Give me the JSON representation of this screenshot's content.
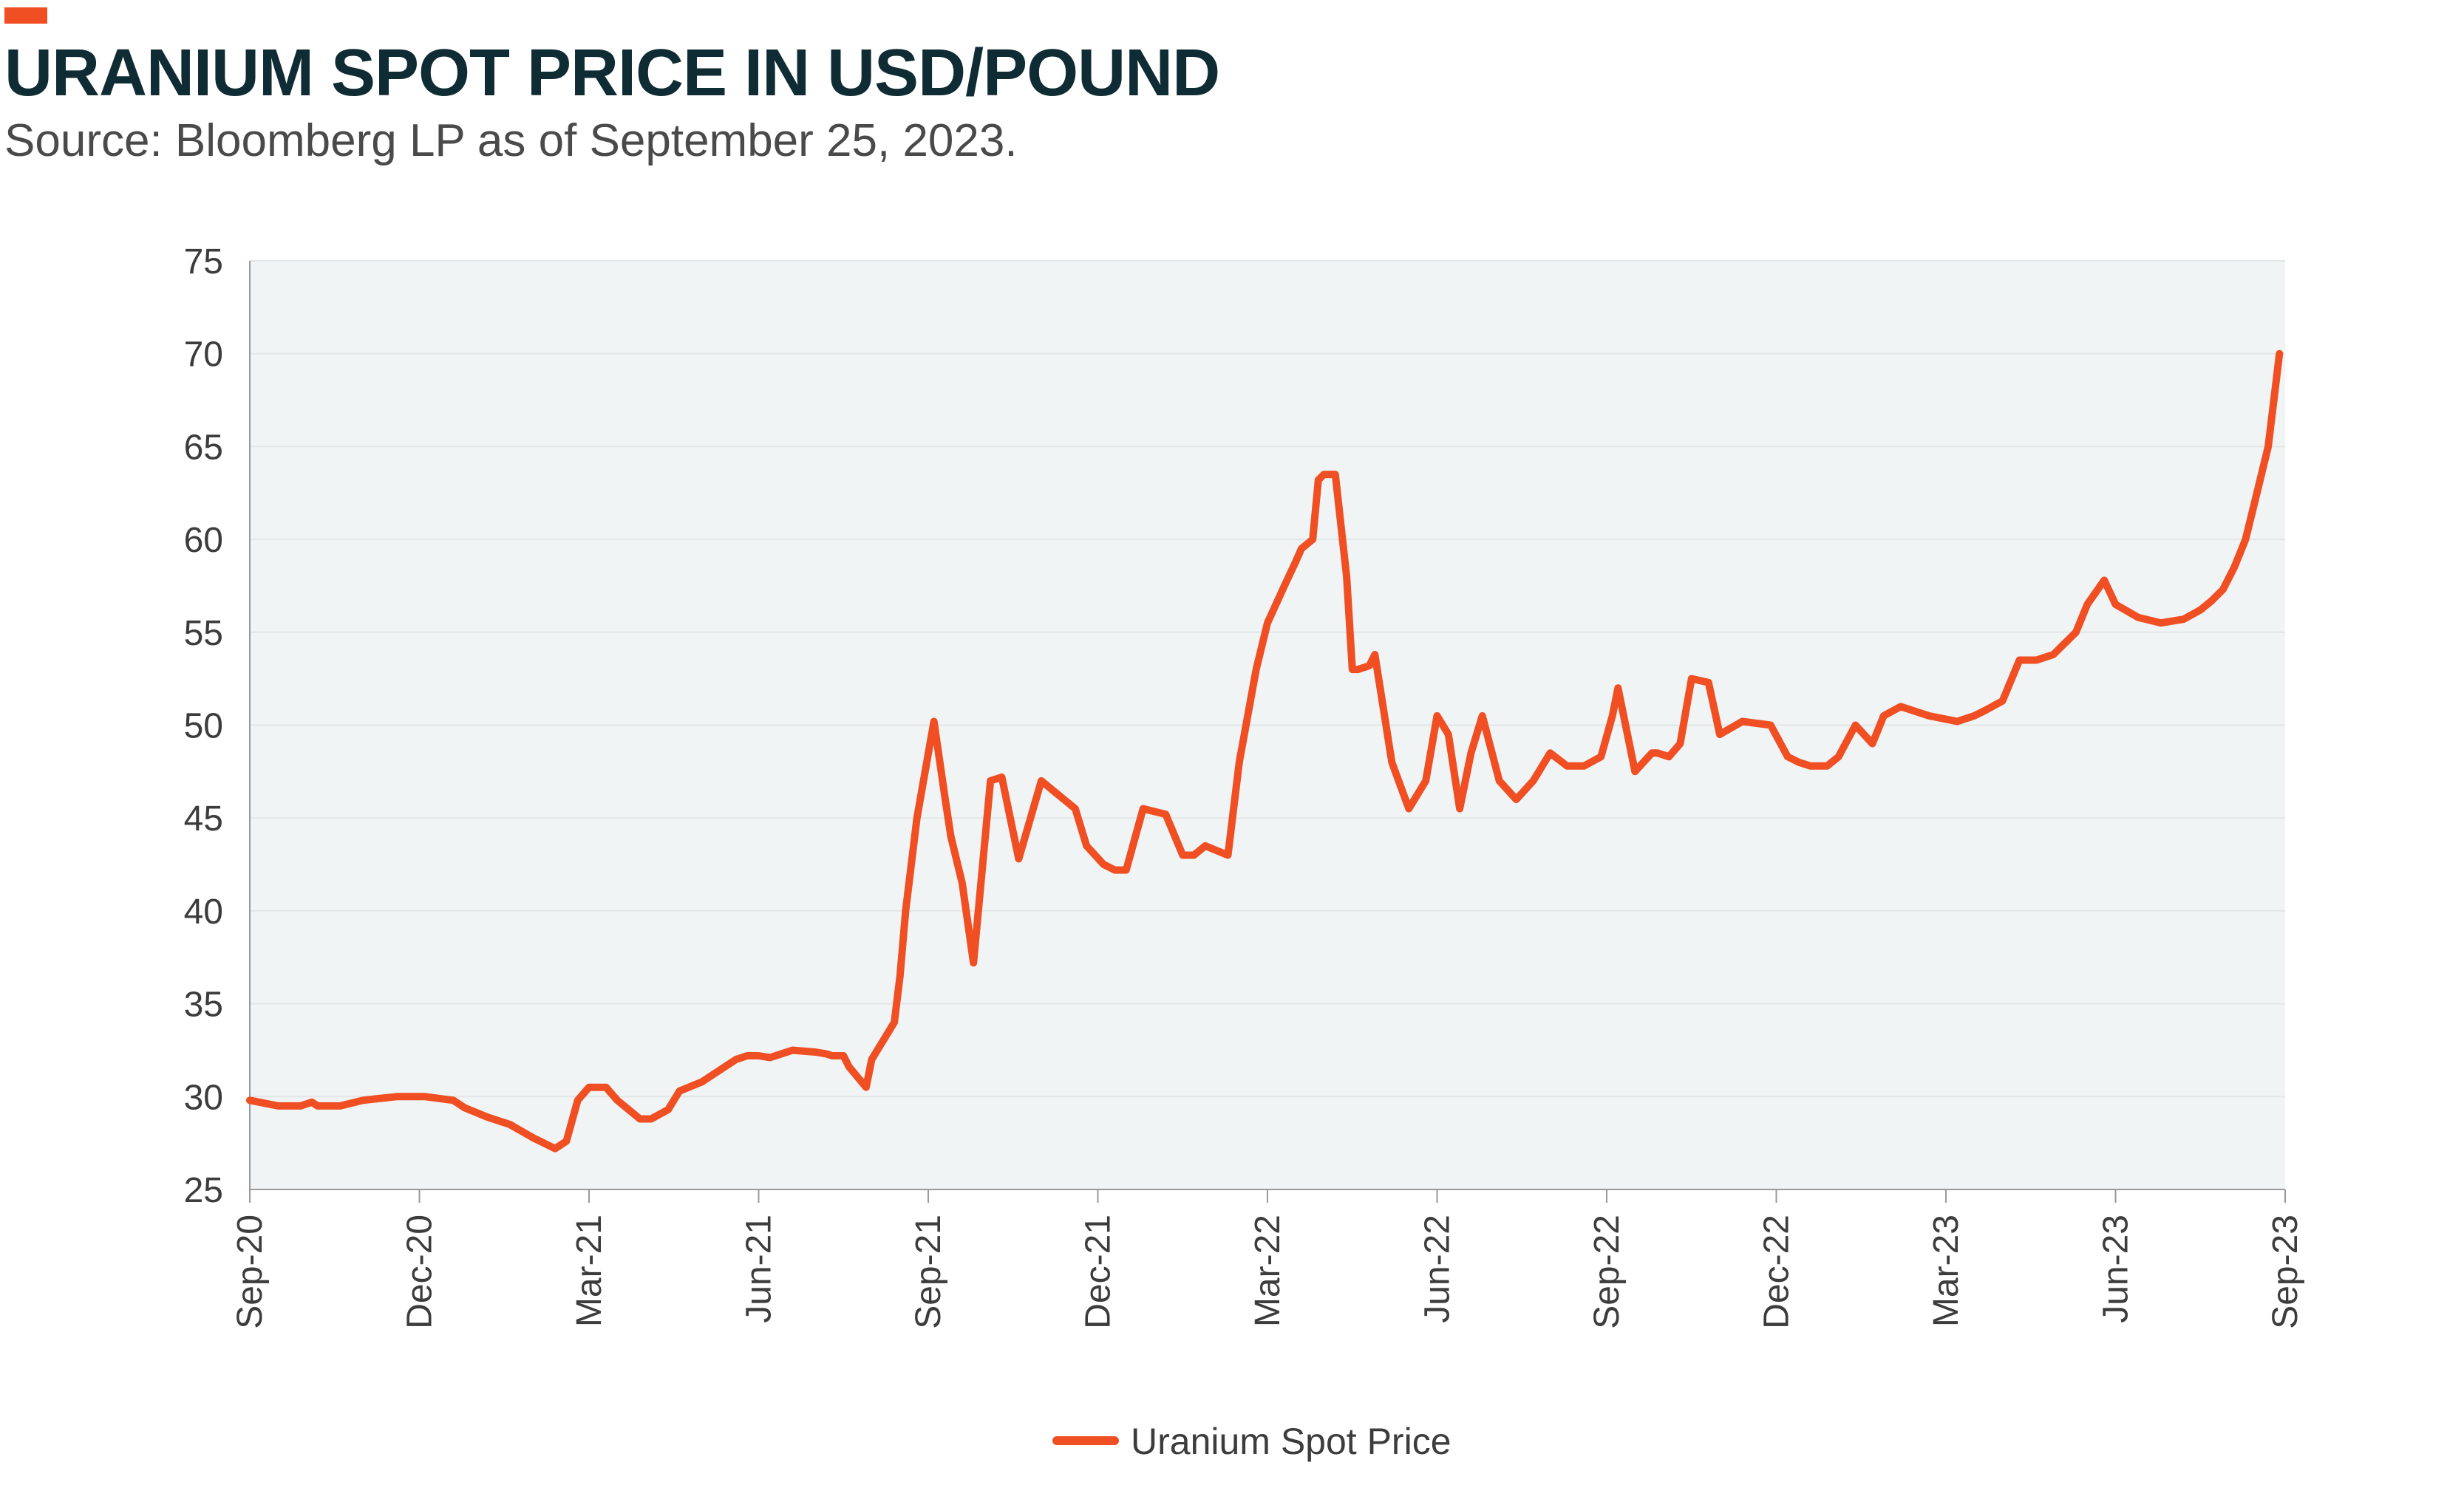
{
  "header": {
    "title": "URANIUM SPOT PRICE IN USD/POUND",
    "subtitle": "Source: Bloomberg LP as of September 25, 2023."
  },
  "colors": {
    "accent": "#f04e23",
    "line": "#f04e23",
    "plot_background": "#f1f4f4",
    "title": "#0f2b33",
    "text": "#3c3c3c"
  },
  "chart_data": {
    "type": "line",
    "title": "URANIUM SPOT PRICE IN USD/POUND",
    "subtitle": "Source: Bloomberg LP as of September 25, 2023.",
    "xlabel": "",
    "ylabel": "",
    "ylim": [
      25,
      75
    ],
    "yticks": [
      25,
      30,
      35,
      40,
      45,
      50,
      55,
      60,
      65,
      70,
      75
    ],
    "xlim": [
      0,
      36
    ],
    "xticks": [
      0,
      3,
      6,
      9,
      12,
      15,
      18,
      21,
      24,
      27,
      30,
      33,
      36
    ],
    "xtick_labels": [
      "Sep-20",
      "Dec-20",
      "Mar-21",
      "Jun-21",
      "Sep-21",
      "Dec-21",
      "Mar-22",
      "Jun-22",
      "Sep-22",
      "Dec-22",
      "Mar-23",
      "Jun-23",
      "Sep-23"
    ],
    "x_units": "months since Sep-20",
    "grid": true,
    "legend": "bottom-center",
    "series": [
      {
        "name": "Uranium Spot Price",
        "color": "#f04e23",
        "x": [
          0.0,
          0.5,
          0.9,
          1.1,
          1.2,
          1.6,
          2.0,
          2.6,
          3.1,
          3.6,
          3.8,
          4.2,
          4.6,
          5.0,
          5.4,
          5.6,
          5.8,
          6.0,
          6.3,
          6.5,
          6.9,
          7.1,
          7.4,
          7.6,
          8.0,
          8.6,
          8.8,
          9.0,
          9.2,
          9.6,
          10.0,
          10.2,
          10.3,
          10.5,
          10.6,
          10.9,
          11.0,
          11.4,
          11.5,
          11.6,
          11.8,
          12.1,
          12.3,
          12.4,
          12.6,
          12.8,
          13.1,
          13.3,
          13.6,
          14.0,
          14.2,
          14.6,
          14.8,
          15.1,
          15.3,
          15.5,
          15.8,
          16.2,
          16.5,
          16.7,
          16.9,
          17.3,
          17.5,
          17.8,
          18.0,
          18.3,
          18.5,
          18.6,
          18.8,
          18.9,
          19.0,
          19.2,
          19.4,
          19.5,
          19.6,
          19.8,
          19.9,
          20.2,
          20.5,
          20.8,
          21.0,
          21.2,
          21.4,
          21.6,
          21.8,
          22.1,
          22.4,
          22.7,
          23.0,
          23.3,
          23.6,
          23.9,
          24.1,
          24.2,
          24.5,
          24.8,
          24.9,
          25.1,
          25.3,
          25.5,
          25.8,
          26.0,
          26.4,
          26.9,
          27.2,
          27.4,
          27.6,
          27.9,
          28.1,
          28.4,
          28.7,
          28.9,
          29.2,
          29.7,
          30.2,
          30.5,
          30.7,
          31.0,
          31.3,
          31.6,
          31.9,
          32.3,
          32.5,
          32.8,
          33.0,
          33.4,
          33.8,
          34.2,
          34.5,
          34.7,
          34.9,
          35.1,
          35.3,
          35.5,
          35.7,
          35.9
        ],
        "values": [
          29.8,
          29.5,
          29.5,
          29.7,
          29.5,
          29.5,
          29.8,
          30.0,
          30.0,
          29.8,
          29.4,
          28.9,
          28.5,
          27.8,
          27.2,
          27.6,
          29.8,
          30.5,
          30.5,
          29.8,
          28.8,
          28.8,
          29.3,
          30.3,
          30.8,
          32.0,
          32.2,
          32.2,
          32.1,
          32.5,
          32.4,
          32.3,
          32.2,
          32.2,
          31.6,
          30.5,
          32.0,
          34.0,
          36.5,
          40.0,
          45.0,
          50.2,
          46.0,
          44.0,
          41.5,
          37.2,
          47.0,
          47.2,
          42.8,
          47.0,
          46.5,
          45.5,
          43.5,
          42.5,
          42.2,
          42.2,
          45.5,
          45.2,
          43.0,
          43.0,
          43.5,
          43.0,
          48.0,
          53.0,
          55.5,
          57.5,
          58.8,
          59.5,
          60.0,
          63.2,
          63.5,
          63.5,
          58.0,
          53.0,
          53.0,
          53.2,
          53.8,
          48.0,
          45.5,
          47.0,
          50.5,
          49.5,
          45.5,
          48.5,
          50.5,
          47.0,
          46.0,
          47.0,
          48.5,
          47.8,
          47.8,
          48.3,
          50.5,
          52.0,
          47.5,
          48.5,
          48.5,
          48.3,
          49.0,
          52.5,
          52.3,
          49.5,
          50.2,
          50.0,
          48.3,
          48.0,
          47.8,
          47.8,
          48.3,
          50.0,
          49.0,
          50.5,
          51.0,
          50.5,
          50.2,
          50.5,
          50.8,
          51.3,
          53.5,
          53.5,
          53.8,
          55.0,
          56.5,
          57.8,
          56.5,
          55.8,
          55.5,
          55.7,
          56.2,
          56.7,
          57.3,
          58.5,
          60.0,
          62.5,
          65.0,
          70.0
        ]
      }
    ]
  }
}
